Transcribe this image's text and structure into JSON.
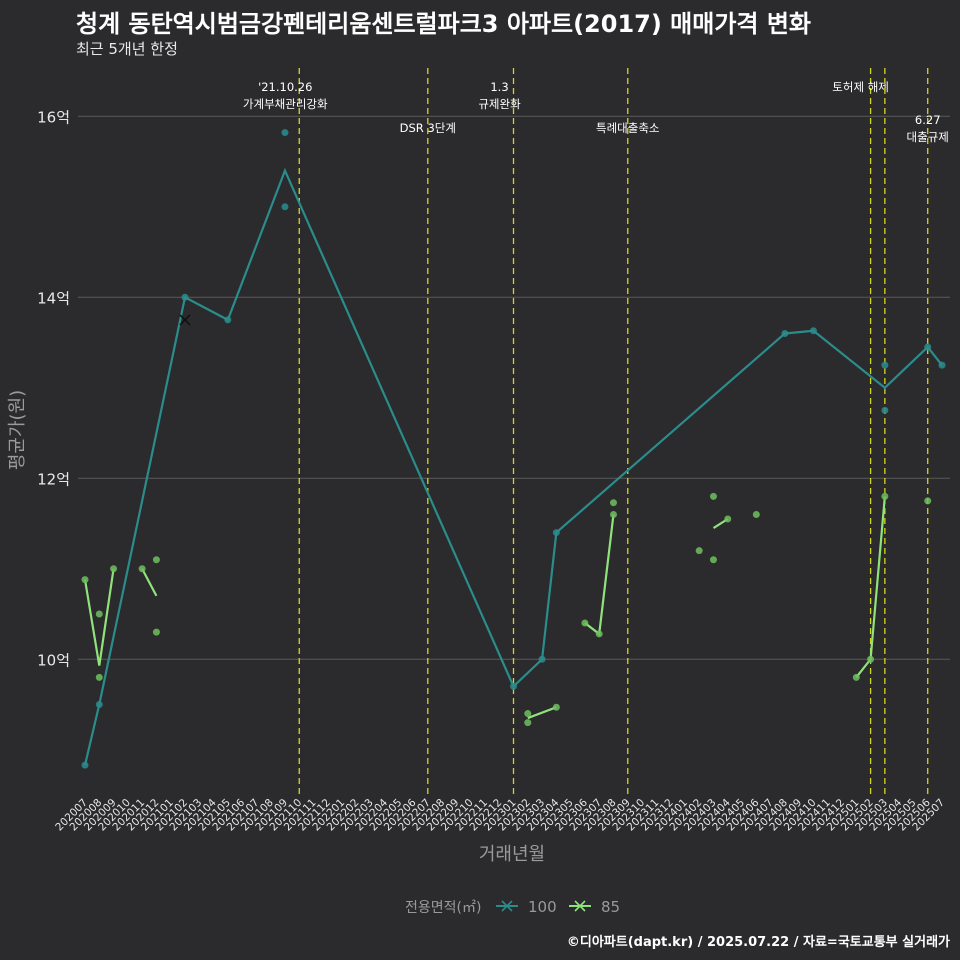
{
  "title": "청계 동탄역시범금강펜테리움센트럴파크3 아파트(2017) 매매가격 변화",
  "subtitle": "최근 5개년 한정",
  "caption": "©디아파트(dapt.kr) / 2025.07.22 / 자료=국토교통부 실거래가",
  "colors": {
    "background": "#2b2a2d",
    "grid": "#5a5a5a",
    "series100": "#2a8d8c",
    "series85": "#90e27c",
    "event_line": "#d6d61e",
    "text": "#e8e8e8",
    "axis_title": "#9a9a9a"
  },
  "chart_data": {
    "type": "line",
    "xlabel": "거래년월",
    "ylabel": "평균가(원)",
    "legend_title": "전용면적(㎡)",
    "legend_position": "bottom",
    "categories": [
      "202007",
      "202008",
      "202009",
      "202010",
      "202011",
      "202012",
      "202101",
      "202102",
      "202103",
      "202104",
      "202105",
      "202106",
      "202107",
      "202108",
      "202109",
      "202110",
      "202111",
      "202112",
      "202201",
      "202202",
      "202203",
      "202204",
      "202205",
      "202206",
      "202207",
      "202208",
      "202209",
      "202210",
      "202211",
      "202212",
      "202301",
      "202302",
      "202303",
      "202304",
      "202305",
      "202306",
      "202307",
      "202308",
      "202309",
      "202310",
      "202311",
      "202312",
      "202401",
      "202402",
      "202403",
      "202404",
      "202405",
      "202406",
      "202407",
      "202408",
      "202409",
      "202410",
      "202411",
      "202412",
      "202501",
      "202502",
      "202503",
      "202504",
      "202505",
      "202506",
      "202507"
    ],
    "yticks": [
      10,
      12,
      14,
      16
    ],
    "ytick_labels": [
      "10억",
      "12억",
      "14억",
      "16억"
    ],
    "ylim": [
      8.5,
      16.6
    ],
    "series": [
      {
        "name": "100",
        "line": [
          [
            "202007",
            8.83
          ],
          [
            "202008",
            9.5
          ],
          [
            "202102",
            14.0
          ],
          [
            "202105",
            13.75
          ],
          [
            "202109",
            15.4
          ],
          [
            "202301",
            9.7
          ],
          [
            "202303",
            10.0
          ],
          [
            "202304",
            11.4
          ],
          [
            "202408",
            13.6
          ],
          [
            "202410",
            13.63
          ],
          [
            "202503",
            13.0
          ],
          [
            "202506",
            13.45
          ],
          [
            "202507",
            13.25
          ]
        ],
        "points": [
          [
            "202007",
            8.83
          ],
          [
            "202008",
            9.5
          ],
          [
            "202102",
            14.0
          ],
          [
            "202105",
            13.75
          ],
          [
            "202109",
            15.82
          ],
          [
            "202109",
            15.0
          ],
          [
            "202301",
            9.7
          ],
          [
            "202303",
            10.0
          ],
          [
            "202304",
            11.4
          ],
          [
            "202408",
            13.6
          ],
          [
            "202410",
            13.63
          ],
          [
            "202503",
            13.25
          ],
          [
            "202503",
            12.75
          ],
          [
            "202506",
            13.45
          ],
          [
            "202507",
            13.25
          ]
        ],
        "cancelled": [
          [
            "202102",
            13.75
          ]
        ]
      },
      {
        "name": "85",
        "segments": [
          [
            [
              "202007",
              10.88
            ],
            [
              "202008",
              9.93
            ],
            [
              "202009",
              11.0
            ]
          ],
          [
            [
              "202011",
              11.0
            ],
            [
              "202012",
              10.7
            ]
          ],
          [
            [
              "202302",
              9.35
            ],
            [
              "202304",
              9.47
            ]
          ],
          [
            [
              "202306",
              10.4
            ],
            [
              "202307",
              10.28
            ],
            [
              "202308",
              11.6
            ]
          ],
          [
            [
              "202403",
              11.45
            ],
            [
              "202404",
              11.55
            ]
          ],
          [
            [
              "202501",
              9.8
            ],
            [
              "202502",
              10.0
            ],
            [
              "202503",
              11.8
            ]
          ]
        ],
        "points": [
          [
            "202007",
            10.88
          ],
          [
            "202008",
            10.5
          ],
          [
            "202008",
            9.8
          ],
          [
            "202009",
            11.0
          ],
          [
            "202011",
            11.0
          ],
          [
            "202012",
            11.1
          ],
          [
            "202012",
            10.3
          ],
          [
            "202302",
            9.4
          ],
          [
            "202302",
            9.3
          ],
          [
            "202304",
            9.47
          ],
          [
            "202306",
            10.4
          ],
          [
            "202307",
            10.28
          ],
          [
            "202308",
            11.73
          ],
          [
            "202308",
            11.6
          ],
          [
            "202402",
            11.2
          ],
          [
            "202403",
            11.8
          ],
          [
            "202403",
            11.1
          ],
          [
            "202404",
            11.55
          ],
          [
            "202406",
            11.6
          ],
          [
            "202501",
            9.8
          ],
          [
            "202502",
            10.0
          ],
          [
            "202503",
            11.8
          ],
          [
            "202506",
            11.75
          ]
        ]
      }
    ],
    "events": [
      {
        "x": "202110",
        "lines": [
          "'21.10.26",
          "가계부채관리강화"
        ],
        "level": 0
      },
      {
        "x": "202207",
        "lines": [
          "DSR 3단계"
        ],
        "level": 1
      },
      {
        "x": "202301",
        "lines": [
          "1.3",
          "규제완화"
        ],
        "level": 0
      },
      {
        "x": "202309",
        "lines": [
          "특례대출축소"
        ],
        "level": 1
      },
      {
        "x": "202502",
        "lines": [
          "토허제 해제"
        ],
        "level": 0
      },
      {
        "x": "202503",
        "lines": [],
        "level": 0
      },
      {
        "x": "202506",
        "lines": [
          "6.27",
          "대출규제"
        ],
        "level": 2
      }
    ]
  }
}
